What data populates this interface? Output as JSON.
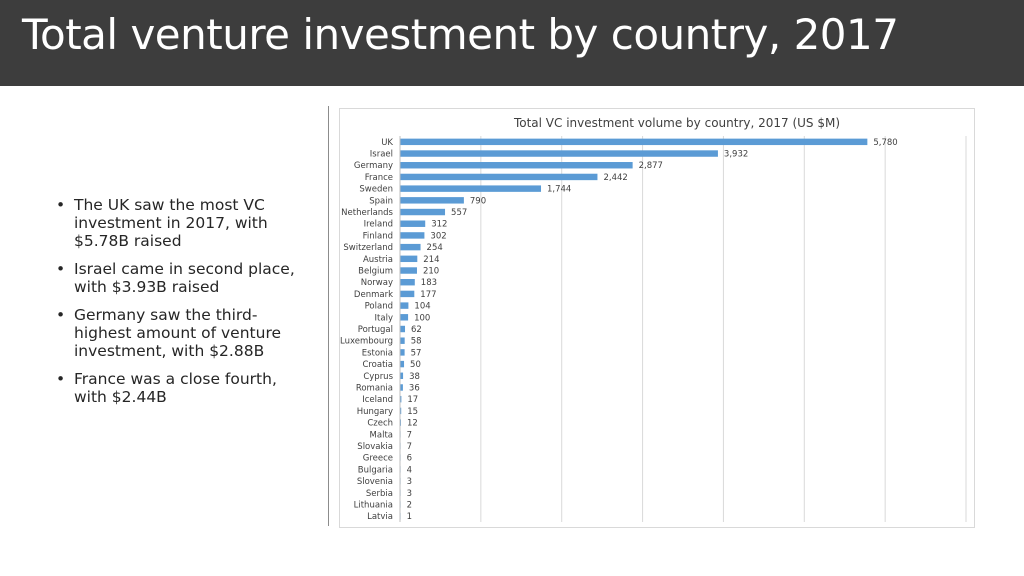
{
  "slide": {
    "title": "Total venture investment by country, 2017",
    "bullets": [
      "The UK saw the most VC investment in 2017, with $5.78B raised",
      "Israel came in second place, with $3.93B raised",
      "Germany saw the third-highest amount of venture investment, with $2.88B",
      "France was a close fourth, with $2.44B"
    ],
    "bullet_glyph": "•"
  },
  "colors": {
    "bar": "#5b9bd5",
    "title_bar": "#3d3d3d",
    "gridline": "#d9d9d9"
  },
  "chart_data": {
    "type": "bar",
    "orientation": "horizontal",
    "title": "Total VC investment volume by country, 2017 (US $M)",
    "xlabel": "",
    "ylabel": "",
    "xlim": [
      0,
      7000
    ],
    "grid": true,
    "legend": "none",
    "categories": [
      "UK",
      "Israel",
      "Germany",
      "France",
      "Sweden",
      "Spain",
      "Netherlands",
      "Ireland",
      "Finland",
      "Switzerland",
      "Austria",
      "Belgium",
      "Norway",
      "Denmark",
      "Poland",
      "Italy",
      "Portugal",
      "Luxembourg",
      "Estonia",
      "Croatia",
      "Cyprus",
      "Romania",
      "Iceland",
      "Hungary",
      "Czech",
      "Malta",
      "Slovakia",
      "Greece",
      "Bulgaria",
      "Slovenia",
      "Serbia",
      "Lithuania",
      "Latvia"
    ],
    "values": [
      5780,
      3932,
      2877,
      2442,
      1744,
      790,
      557,
      312,
      302,
      254,
      214,
      210,
      183,
      177,
      104,
      100,
      62,
      58,
      57,
      50,
      38,
      36,
      17,
      15,
      12,
      7,
      7,
      6,
      4,
      3,
      3,
      2,
      1
    ],
    "value_labels": [
      "5,780",
      "3,932",
      "2,877",
      "2,442",
      "1,744",
      "790",
      "557",
      "312",
      "302",
      "254",
      "214",
      "210",
      "183",
      "177",
      "104",
      "100",
      "62",
      "58",
      "57",
      "50",
      "38",
      "36",
      "17",
      "15",
      "12",
      "7",
      "7",
      "6",
      "4",
      "3",
      "3",
      "2",
      "1"
    ]
  }
}
